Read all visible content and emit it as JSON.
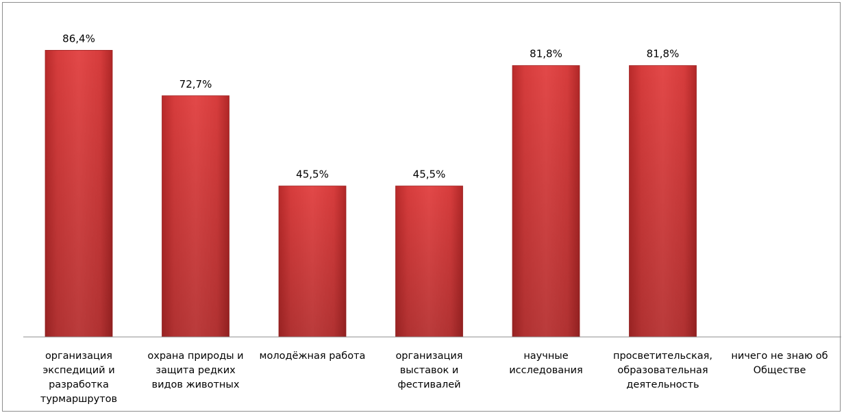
{
  "chart_data": {
    "type": "bar",
    "categories": [
      "организация экспедиций и разработка турмаршрутов",
      "охрана природы и защита редких видов животных",
      "молодёжная работа",
      "организация выставок и фестивалей",
      "научные исследования",
      "просветительская, образовательная деятельность",
      "ничего не знаю об Обществе"
    ],
    "values": [
      86.4,
      72.7,
      45.5,
      45.5,
      81.8,
      81.8,
      0
    ],
    "value_labels": [
      "86,4%",
      "72,7%",
      "45,5%",
      "45,5%",
      "81,8%",
      "81,8%",
      ""
    ],
    "title": "",
    "xlabel": "",
    "ylabel": "",
    "ylim": [
      0,
      100
    ],
    "grid": false,
    "legend": "none",
    "bar_color": "#d63a3a"
  }
}
